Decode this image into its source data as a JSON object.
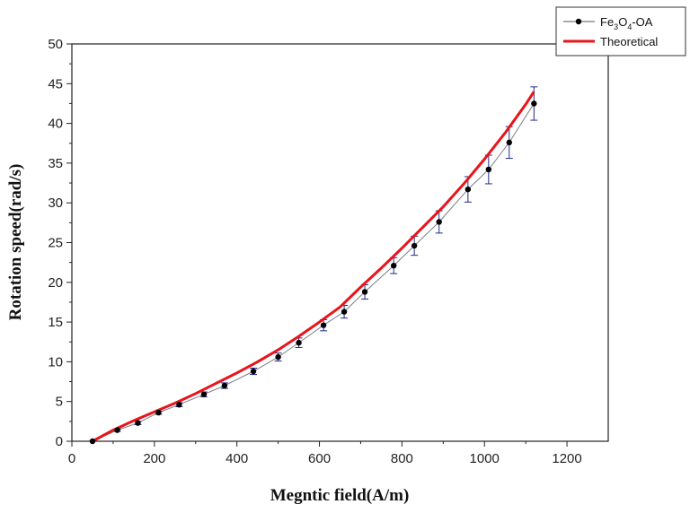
{
  "chart_data": {
    "type": "line",
    "xlabel": "Megntic field(A/m)",
    "ylabel": "Rotation speed(rad/s)",
    "xlim": [
      0,
      1300
    ],
    "ylim": [
      0,
      50
    ],
    "xticks": [
      0,
      200,
      400,
      600,
      800,
      1000,
      1200
    ],
    "yticks": [
      0,
      5,
      10,
      15,
      20,
      25,
      30,
      35,
      40,
      45,
      50
    ],
    "legend_position": "top-right",
    "series": [
      {
        "name": "Fe3O4-OA",
        "legend_label": {
          "base": "Fe",
          "s1": "3",
          "mid": "O",
          "s2": "4",
          "tail": "-OA"
        },
        "style": "line-with-points",
        "color": "#000000",
        "line_color": "#7a7f8c",
        "errorbar_color": "#1f2a8a",
        "x": [
          50,
          110,
          160,
          210,
          260,
          320,
          370,
          440,
          500,
          550,
          610,
          660,
          710,
          780,
          830,
          890,
          960,
          1010,
          1060,
          1120
        ],
        "y": [
          0,
          1.4,
          2.3,
          3.6,
          4.6,
          5.9,
          7.0,
          8.8,
          10.6,
          12.4,
          14.6,
          16.3,
          18.8,
          22.1,
          24.6,
          27.6,
          31.7,
          34.2,
          37.6,
          42.5
        ],
        "yerr": [
          0,
          0.15,
          0.2,
          0.2,
          0.25,
          0.3,
          0.35,
          0.4,
          0.5,
          0.6,
          0.7,
          0.8,
          0.9,
          1.0,
          1.2,
          1.4,
          1.6,
          1.8,
          2.0,
          2.1
        ]
      },
      {
        "name": "Theoretical",
        "style": "line",
        "color": "#e8141b",
        "x": [
          50,
          100,
          150,
          200,
          250,
          300,
          350,
          400,
          450,
          500,
          550,
          600,
          650,
          700,
          750,
          800,
          850,
          900,
          950,
          1000,
          1050,
          1100,
          1120
        ],
        "y": [
          0,
          1.4,
          2.6,
          3.7,
          4.8,
          6.0,
          7.3,
          8.6,
          10.0,
          11.5,
          13.2,
          15.0,
          16.9,
          19.4,
          21.8,
          24.3,
          26.9,
          29.5,
          32.4,
          35.5,
          38.8,
          42.4,
          44.0
        ]
      }
    ]
  }
}
